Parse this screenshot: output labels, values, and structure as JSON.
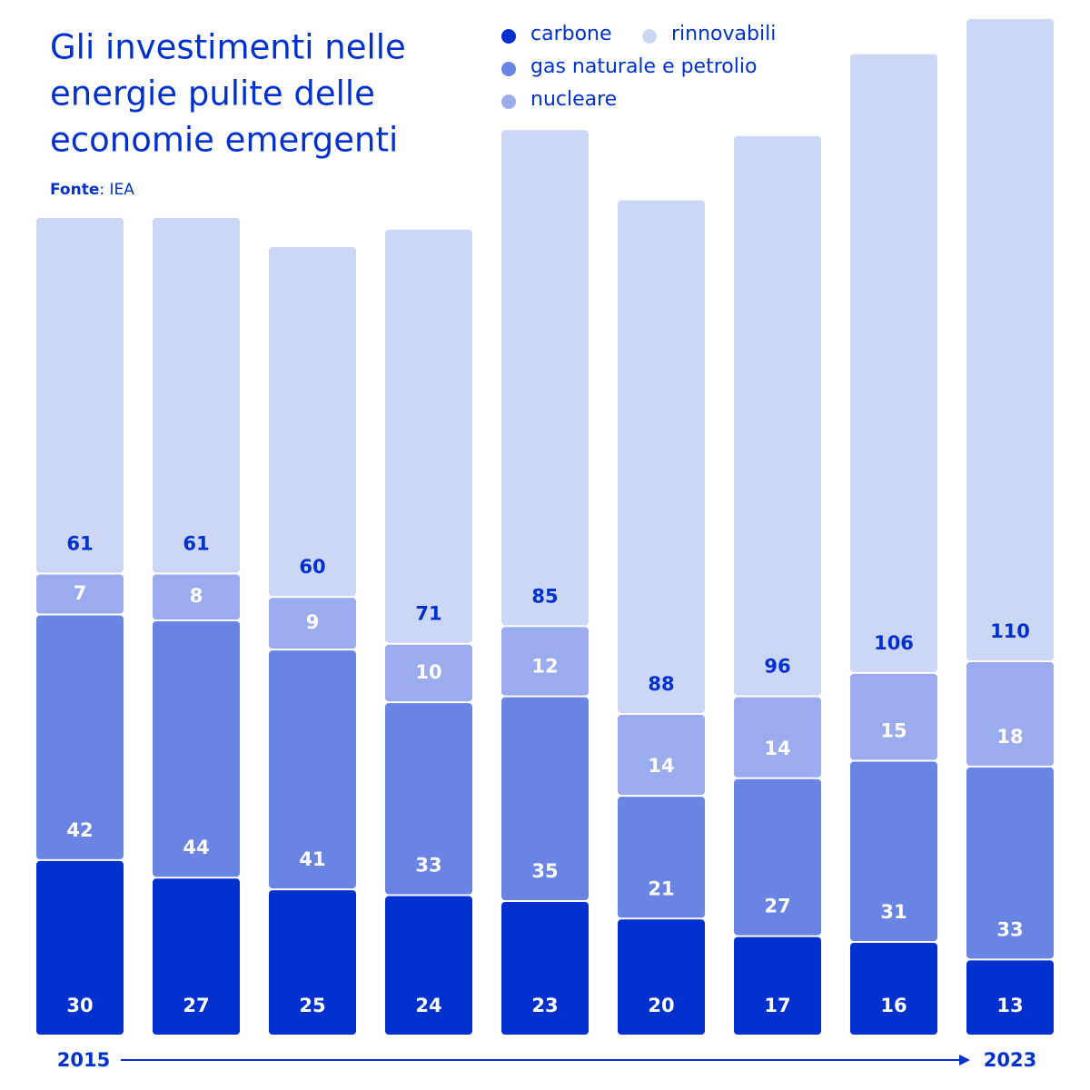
{
  "chart_data": {
    "type": "stacked_bar",
    "title": [
      "Gli investimenti nelle",
      "energie pulite  delle",
      "economie emergenti"
    ],
    "source": {
      "label": "Fonte",
      "text": ": IEA"
    },
    "categories": [
      "2015",
      null,
      null,
      null,
      null,
      null,
      null,
      null,
      "2023"
    ],
    "series": [
      {
        "name": "carbone",
        "color": "#0031cf",
        "label_color": "#ffffff",
        "values": [
          30,
          27,
          25,
          24,
          23,
          20,
          17,
          16,
          13
        ]
      },
      {
        "name": "gas naturale e petrolio",
        "color": "#6984e3",
        "label_color": "#ffffff",
        "values": [
          42,
          44,
          41,
          33,
          35,
          21,
          27,
          31,
          33
        ]
      },
      {
        "name": "nucleare",
        "color": "#9aabee",
        "label_color": "#ffffff",
        "values": [
          7,
          8,
          9,
          10,
          12,
          14,
          14,
          15,
          18
        ]
      },
      {
        "name": "rinnovabili",
        "color": "#ccd7f6",
        "label_color": "#0031cf",
        "values": [
          61,
          61,
          60,
          71,
          85,
          88,
          96,
          106,
          110
        ]
      }
    ]
  }
}
